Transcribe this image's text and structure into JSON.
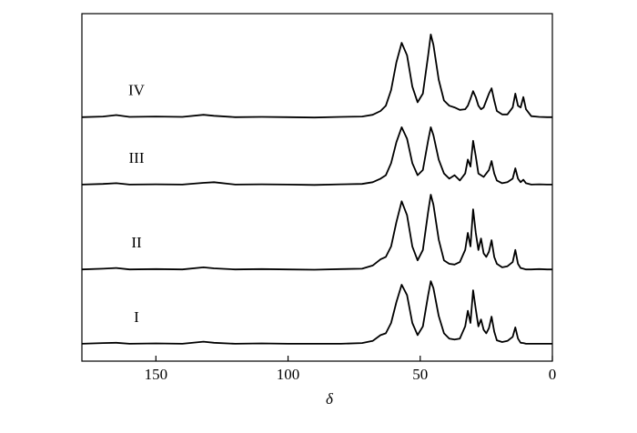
{
  "chart_data": {
    "type": "line",
    "x_label": "δ",
    "x": [
      178,
      170,
      165,
      160,
      150,
      140,
      132,
      128,
      120,
      110,
      100,
      90,
      80,
      72,
      68,
      65,
      63,
      61,
      59,
      57,
      55,
      53,
      51,
      49,
      47,
      46,
      45,
      43,
      41,
      39,
      37,
      35,
      33,
      32,
      31,
      30,
      29,
      28,
      27,
      26,
      25,
      24,
      23,
      22,
      21,
      19,
      17,
      15,
      14,
      13,
      12,
      11,
      10,
      8,
      5,
      2,
      0
    ],
    "xlim": [
      178,
      0
    ],
    "xticks": [
      150,
      100,
      50,
      0
    ],
    "ylim": [
      0,
      100
    ],
    "series": [
      {
        "name": "I",
        "color": "#000000",
        "values": [
          5,
          5.2,
          5.3,
          5,
          5.1,
          5,
          5.6,
          5.3,
          5,
          5.1,
          5,
          5,
          5,
          5.2,
          5.8,
          7.5,
          8,
          11,
          17,
          22,
          19,
          11,
          7.5,
          10,
          19,
          23,
          21,
          13,
          8,
          6.5,
          6.2,
          6.5,
          10,
          14.5,
          11,
          20.4,
          15,
          10,
          12,
          9,
          8,
          9.5,
          12.8,
          8.5,
          6,
          5.5,
          5.8,
          7,
          9.7,
          6.5,
          5.3,
          5.2,
          5,
          5,
          5,
          5,
          5
        ]
      },
      {
        "name": "II",
        "color": "#000000",
        "values": [
          26.4,
          26.6,
          26.8,
          26.4,
          26.5,
          26.4,
          27,
          26.7,
          26.4,
          26.5,
          26.4,
          26.3,
          26.5,
          26.6,
          27.5,
          29.3,
          30,
          33,
          40,
          46,
          42,
          33,
          29,
          32,
          43,
          47.9,
          45,
          35,
          29,
          28,
          27.8,
          28.5,
          32,
          36.9,
          33,
          43.7,
          37,
          32,
          35.3,
          31,
          30,
          31.5,
          34.8,
          30,
          28,
          27,
          27.3,
          28.5,
          32,
          28,
          26.8,
          26.6,
          26.4,
          26.4,
          26.5,
          26.4,
          26.4
        ]
      },
      {
        "name": "III",
        "color": "#000000",
        "values": [
          50.8,
          51,
          51.2,
          50.8,
          50.9,
          50.8,
          51.3,
          51.5,
          50.8,
          50.9,
          50.8,
          50.7,
          50.9,
          51,
          51.5,
          52.5,
          53.5,
          57,
          63,
          67.3,
          64,
          57,
          53.5,
          55,
          63.5,
          67.3,
          65,
          58,
          54,
          52.5,
          53.5,
          52,
          54,
          58,
          56,
          63.4,
          59,
          54,
          53.5,
          53,
          54,
          55,
          57.6,
          54,
          52,
          51.2,
          51.5,
          52.5,
          55.5,
          52.5,
          51.5,
          52.2,
          51.2,
          50.8,
          50.9,
          50.8,
          50.8
        ]
      },
      {
        "name": "IV",
        "color": "#000000",
        "values": [
          70.2,
          70.4,
          70.8,
          70.3,
          70.4,
          70.3,
          70.9,
          70.6,
          70.2,
          70.3,
          70.2,
          70.1,
          70.3,
          70.4,
          70.9,
          72,
          73.5,
          78,
          86,
          91.6,
          88,
          79,
          74.5,
          77,
          88,
          94,
          91,
          81,
          75,
          73.5,
          73,
          72.3,
          72.5,
          73.5,
          75.5,
          77.7,
          76,
          73.5,
          72.5,
          73,
          75,
          77,
          78.5,
          75,
          72,
          71,
          71,
          73,
          77,
          73.5,
          73,
          76,
          72.5,
          70.5,
          70.3,
          70.2,
          70.2
        ]
      }
    ]
  }
}
